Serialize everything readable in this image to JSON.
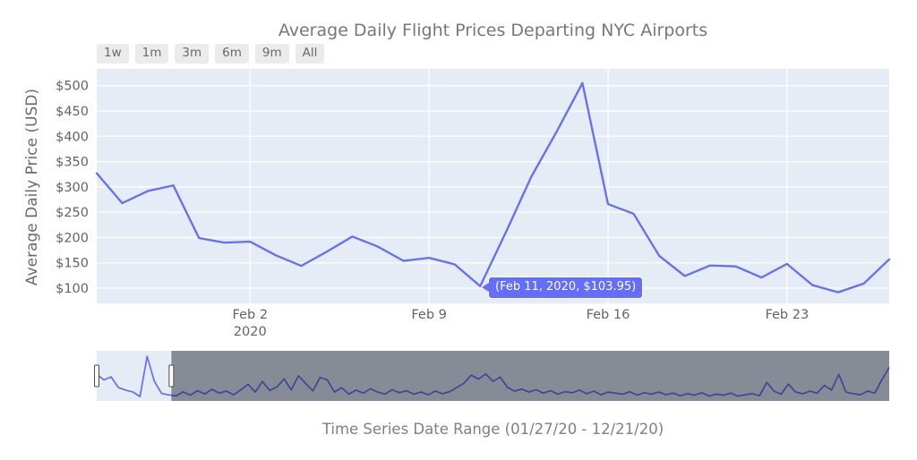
{
  "range_selector": {
    "buttons": [
      "1w",
      "1m",
      "3m",
      "6m",
      "9m",
      "All"
    ]
  },
  "colors": {
    "accent": "#636EFA",
    "plot_bg": "#E5ECF6",
    "grid": "#FFFFFF",
    "mask": "rgba(20,22,30,0.45)",
    "tick_text": "#636363",
    "handle_fill": "#FFFFFF",
    "handle_border": "#4a4a4a"
  },
  "chart_data": {
    "type": "line",
    "title": "Average Daily Flight Prices Departing NYC Airports",
    "ylabel": "Average Daily Price (USD)",
    "caption": "Time Series Date Range (01/27/20 - 12/21/20)",
    "ylim": [
      70,
      533
    ],
    "grid": true,
    "y_axis": {
      "ticks": [
        {
          "label": "$500",
          "value": 500
        },
        {
          "label": "$450",
          "value": 450
        },
        {
          "label": "$400",
          "value": 400
        },
        {
          "label": "$350",
          "value": 350
        },
        {
          "label": "$300",
          "value": 300
        },
        {
          "label": "$250",
          "value": 250
        },
        {
          "label": "$200",
          "value": 200
        },
        {
          "label": "$150",
          "value": 150
        },
        {
          "label": "$100",
          "value": 100
        }
      ]
    },
    "x_axis": {
      "ticks": [
        {
          "label": "Feb 2",
          "sublabel": "2020",
          "index": 6
        },
        {
          "label": "Feb 9",
          "sublabel": "",
          "index": 13
        },
        {
          "label": "Feb 16",
          "sublabel": "",
          "index": 20
        },
        {
          "label": "Feb 23",
          "sublabel": "",
          "index": 27
        }
      ]
    },
    "series": {
      "name": "Average Daily Price",
      "dates": [
        "Jan 27",
        "Jan 28",
        "Jan 29",
        "Jan 30",
        "Jan 31",
        "Feb 1",
        "Feb 2",
        "Feb 3",
        "Feb 4",
        "Feb 5",
        "Feb 6",
        "Feb 7",
        "Feb 8",
        "Feb 9",
        "Feb 10",
        "Feb 11",
        "Feb 12",
        "Feb 13",
        "Feb 14",
        "Feb 15",
        "Feb 16",
        "Feb 17",
        "Feb 18",
        "Feb 19",
        "Feb 20",
        "Feb 21",
        "Feb 22",
        "Feb 23",
        "Feb 24",
        "Feb 25",
        "Feb 26",
        "Feb 27"
      ],
      "values": [
        327,
        268,
        292,
        303,
        199,
        190,
        192,
        165,
        144,
        172,
        202,
        182,
        154,
        160,
        147,
        103.95,
        210,
        320,
        410,
        505,
        266,
        247,
        164,
        124,
        145,
        143,
        121,
        148,
        106,
        92,
        109,
        157
      ],
      "values_approximate": true
    },
    "tooltip": {
      "text": "(Feb 11, 2020, $103.95)",
      "date": "Feb 11, 2020",
      "value": 103.95,
      "point_index": 15
    },
    "overview": {
      "date_start": "01/27/20",
      "date_end": "12/21/20",
      "ylim": [
        60,
        560
      ],
      "selected_window_days": [
        0,
        31
      ],
      "total_days": 329,
      "values_approximate": true,
      "values": [
        327,
        270,
        300,
        195,
        168,
        150,
        104,
        505,
        255,
        135,
        120,
        110,
        150,
        118,
        162,
        130,
        175,
        138,
        158,
        122,
        170,
        225,
        148,
        255,
        165,
        198,
        280,
        172,
        310,
        235,
        160,
        295,
        270,
        148,
        192,
        128,
        168,
        138,
        182,
        148,
        128,
        172,
        142,
        162,
        128,
        148,
        122,
        158,
        132,
        152,
        196,
        238,
        318,
        278,
        330,
        255,
        298,
        196,
        158,
        178,
        148,
        172,
        138,
        162,
        128,
        152,
        142,
        168,
        132,
        158,
        122,
        148,
        138,
        128,
        152,
        118,
        142,
        128,
        148,
        122,
        138,
        112,
        132,
        118,
        142,
        108,
        128,
        118,
        138,
        108,
        122,
        132,
        112,
        245,
        158,
        128,
        228,
        148,
        132,
        158,
        138,
        215,
        168,
        325,
        148,
        132,
        122,
        158,
        138,
        275,
        395
      ]
    }
  }
}
